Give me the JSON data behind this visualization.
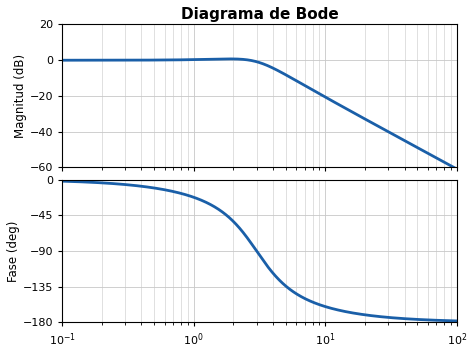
{
  "title": "Diagrama de Bode",
  "title_fontsize": 11,
  "title_fontweight": "bold",
  "line_color": "#1a5fa8",
  "line_width": 2.0,
  "mag_ylabel": "Magnitud (dB)",
  "phase_ylabel": "Fase (deg)",
  "freq_range": [
    0.1,
    100
  ],
  "mag_ylim": [
    -60,
    20
  ],
  "mag_yticks": [
    20,
    0,
    -20,
    -40,
    -60
  ],
  "phase_ylim": [
    -180,
    0
  ],
  "phase_yticks": [
    0,
    -45,
    -90,
    -135,
    -180
  ],
  "background_color": "#ffffff",
  "grid_color": "#c8c8c8",
  "system": {
    "wn": 3.0,
    "zeta": 0.55,
    "K": 1.0
  }
}
